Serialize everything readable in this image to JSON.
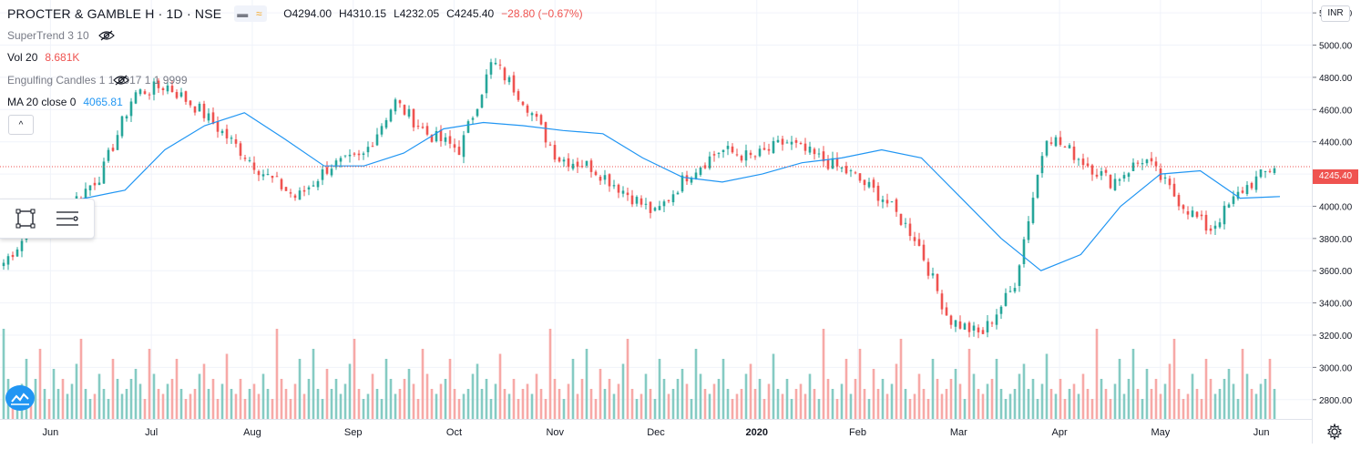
{
  "header": {
    "symbol": "PROCTER & GAMBLE H · 1D · NSE",
    "open": "O4294.00",
    "high": "H4310.15",
    "low": "L4232.05",
    "close": "C4245.40",
    "change": "−28.80 (−0.67%)"
  },
  "indicators": {
    "supertrend": {
      "label": "SuperTrend 3 10"
    },
    "vol": {
      "label": "Vol 20",
      "value": "8.681K"
    },
    "engulfing": {
      "label": "Engulfing Candles 1 1 2017 1 1 9999"
    },
    "ma": {
      "label": "MA 20 close 0",
      "value": "4065.81"
    }
  },
  "price_scale": {
    "currency": "INR",
    "last_price_tag": "4245.40",
    "ticks": [
      "5200.00",
      "5000.00",
      "4800.00",
      "4600.00",
      "4400.00",
      "4200.00",
      "4000.00",
      "3800.00",
      "3600.00",
      "3400.00",
      "3200.00",
      "3000.00",
      "2800.00"
    ]
  },
  "colors": {
    "up": "#26a69a",
    "down": "#ef5350",
    "ma": "#2196f3",
    "up_vol": "#85cbc3",
    "down_vol": "#f7a9a7",
    "grid": "#f0f3fa"
  },
  "chart_data": {
    "type": "candlestick",
    "x_axis_labels": [
      "Jun",
      "Jul",
      "Aug",
      "Sep",
      "Oct",
      "Nov",
      "Dec",
      "2020",
      "Feb",
      "Mar",
      "Apr",
      "May",
      "Jun"
    ],
    "ylim": [
      2680,
      5280
    ],
    "last_price": 4245.4,
    "anchors": [
      {
        "label": "Jun",
        "price": 3650
      },
      {
        "label": "Jun",
        "price": 3900
      },
      {
        "label": "Jul",
        "price": 4000
      },
      {
        "label": "Jul",
        "price": 4200
      },
      {
        "label": "Jul",
        "price": 4700
      },
      {
        "label": "Aug",
        "price": 4750
      },
      {
        "label": "Aug",
        "price": 4600
      },
      {
        "label": "Aug",
        "price": 4400
      },
      {
        "label": "Aug",
        "price": 4200
      },
      {
        "label": "Sep",
        "price": 4050
      },
      {
        "label": "Sep",
        "price": 4250
      },
      {
        "label": "Sep",
        "price": 4300
      },
      {
        "label": "Oct",
        "price": 4650
      },
      {
        "label": "Oct",
        "price": 4450
      },
      {
        "label": "Oct",
        "price": 4350
      },
      {
        "label": "Nov",
        "price": 4900
      },
      {
        "label": "Nov",
        "price": 4650
      },
      {
        "label": "Nov",
        "price": 4300
      },
      {
        "label": "Dec",
        "price": 4250
      },
      {
        "label": "Dec",
        "price": 4100
      },
      {
        "label": "Dec",
        "price": 3950
      },
      {
        "label": "2020",
        "price": 4200
      },
      {
        "label": "2020",
        "price": 4350
      },
      {
        "label": "2020",
        "price": 4300
      },
      {
        "label": "Feb",
        "price": 4400
      },
      {
        "label": "Feb",
        "price": 4300
      },
      {
        "label": "Feb",
        "price": 4200
      },
      {
        "label": "Mar",
        "price": 4050
      },
      {
        "label": "Mar",
        "price": 3800
      },
      {
        "label": "Mar",
        "price": 3300
      },
      {
        "label": "Mar",
        "price": 3200
      },
      {
        "label": "Apr",
        "price": 3500
      },
      {
        "label": "Apr",
        "price": 4450
      },
      {
        "label": "Apr",
        "price": 4300
      },
      {
        "label": "Apr",
        "price": 4150
      },
      {
        "label": "May",
        "price": 4300
      },
      {
        "label": "May",
        "price": 4050
      },
      {
        "label": "May",
        "price": 3850
      },
      {
        "label": "Jun",
        "price": 4100
      },
      {
        "label": "Jun",
        "price": 4250
      }
    ],
    "ma_points": [
      {
        "price": 3950
      },
      {
        "price": 4000
      },
      {
        "price": 4050
      },
      {
        "price": 4100
      },
      {
        "price": 4350
      },
      {
        "price": 4500
      },
      {
        "price": 4580
      },
      {
        "price": 4420
      },
      {
        "price": 4250
      },
      {
        "price": 4250
      },
      {
        "price": 4330
      },
      {
        "price": 4480
      },
      {
        "price": 4520
      },
      {
        "price": 4500
      },
      {
        "price": 4470
      },
      {
        "price": 4450
      },
      {
        "price": 4300
      },
      {
        "price": 4180
      },
      {
        "price": 4150
      },
      {
        "price": 4200
      },
      {
        "price": 4270
      },
      {
        "price": 4300
      },
      {
        "price": 4350
      },
      {
        "price": 4300
      },
      {
        "price": 4050
      },
      {
        "price": 3800
      },
      {
        "price": 3600
      },
      {
        "price": 3700
      },
      {
        "price": 4000
      },
      {
        "price": 4200
      },
      {
        "price": 4220
      },
      {
        "price": 4050
      },
      {
        "price": 4060
      }
    ],
    "volume_heights": [
      0.9,
      0.4,
      0.3,
      0.2,
      0.35,
      0.6,
      0.25,
      0.4,
      0.7,
      0.3,
      0.2,
      0.5,
      0.3,
      0.4,
      0.25,
      0.35,
      0.55,
      0.8,
      0.3,
      0.2,
      0.25,
      0.45,
      0.3,
      0.2,
      0.6,
      0.4,
      0.25,
      0.3,
      0.4,
      0.5,
      0.35,
      0.2,
      0.7,
      0.45,
      0.3,
      0.25,
      0.35,
      0.4,
      0.6,
      0.3,
      0.2,
      0.25,
      0.3,
      0.45,
      0.55,
      0.3,
      0.4,
      0.2,
      0.35,
      0.65,
      0.3,
      0.25,
      0.4,
      0.2,
      0.3,
      0.35,
      0.25,
      0.45,
      0.3,
      0.2
    ]
  }
}
